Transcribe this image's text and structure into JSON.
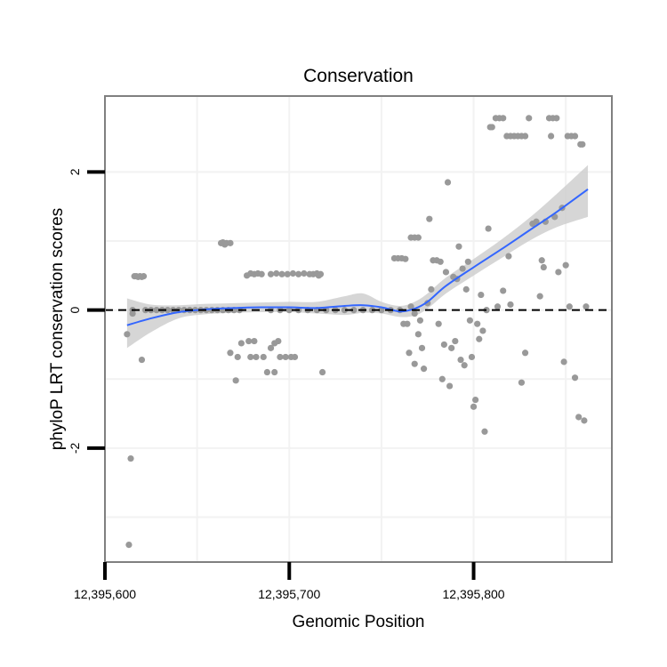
{
  "chart_data": {
    "type": "scatter",
    "title": "Conservation",
    "xlabel": "Genomic Position",
    "ylabel": "phyloP LRT conservation scores",
    "xlim": [
      12395600,
      12395875
    ],
    "ylim": [
      -3.65,
      3.1
    ],
    "x_ticks": [
      12395600,
      12395700,
      12395800
    ],
    "x_tick_labels": [
      "12,395,600",
      "12,395,700",
      "12,395,800"
    ],
    "y_ticks": [
      -2,
      0,
      2
    ],
    "y_tick_labels": [
      "-2",
      "0",
      "2"
    ],
    "x_minor_grid": [
      12395650,
      12395750,
      12395850
    ],
    "y_minor_grid": [
      -3,
      -1,
      1
    ],
    "grid": true,
    "reference_line": 0,
    "colors": {
      "points": "#999999",
      "smooth_line": "#3366FF",
      "confidence_band": "#cccccc",
      "panel_border": "#808080",
      "grid": "#f2f2f2"
    },
    "series": [
      {
        "values": [
          [
            12395612,
            -0.35
          ],
          [
            12395613,
            -3.4
          ],
          [
            12395614,
            -2.15
          ],
          [
            12395615,
            0.0
          ],
          [
            12395616,
            0.49
          ],
          [
            12395617,
            0.49
          ],
          [
            12395618,
            0.48
          ],
          [
            12395619,
            0.49
          ],
          [
            12395620,
            0.48
          ],
          [
            12395621,
            0.49
          ],
          [
            12395620,
            -0.72
          ],
          [
            12395615,
            -0.05
          ],
          [
            12395622,
            0.0
          ],
          [
            12395625,
            0.0
          ],
          [
            12395628,
            0.0
          ],
          [
            12395631,
            0.0
          ],
          [
            12395634,
            0.0
          ],
          [
            12395637,
            0.0
          ],
          [
            12395640,
            0.0
          ],
          [
            12395643,
            0.0
          ],
          [
            12395646,
            0.0
          ],
          [
            12395649,
            0.0
          ],
          [
            12395652,
            0.0
          ],
          [
            12395655,
            0.0
          ],
          [
            12395658,
            0.0
          ],
          [
            12395661,
            0.0
          ],
          [
            12395664,
            0.0
          ],
          [
            12395663,
            0.97
          ],
          [
            12395664,
            0.98
          ],
          [
            12395665,
            0.95
          ],
          [
            12395666,
            0.97
          ],
          [
            12395668,
            0.97
          ],
          [
            12395667,
            0.0
          ],
          [
            12395670,
            0.0
          ],
          [
            12395673,
            0.0
          ],
          [
            12395668,
            -0.62
          ],
          [
            12395672,
            -0.68
          ],
          [
            12395671,
            -1.02
          ],
          [
            12395674,
            -0.48
          ],
          [
            12395677,
            0.5
          ],
          [
            12395679,
            0.53
          ],
          [
            12395681,
            0.52
          ],
          [
            12395683,
            0.53
          ],
          [
            12395685,
            0.52
          ],
          [
            12395678,
            -0.45
          ],
          [
            12395681,
            -0.45
          ],
          [
            12395679,
            -0.68
          ],
          [
            12395682,
            -0.68
          ],
          [
            12395686,
            -0.68
          ],
          [
            12395688,
            -0.9
          ],
          [
            12395692,
            -0.9
          ],
          [
            12395690,
            -0.55
          ],
          [
            12395692,
            -0.48
          ],
          [
            12395694,
            -0.45
          ],
          [
            12395695,
            -0.68
          ],
          [
            12395698,
            -0.68
          ],
          [
            12395701,
            -0.68
          ],
          [
            12395703,
            -0.68
          ],
          [
            12395690,
            0.52
          ],
          [
            12395693,
            0.53
          ],
          [
            12395696,
            0.52
          ],
          [
            12395699,
            0.52
          ],
          [
            12395702,
            0.53
          ],
          [
            12395705,
            0.52
          ],
          [
            12395708,
            0.53
          ],
          [
            12395711,
            0.52
          ],
          [
            12395713,
            0.52
          ],
          [
            12395715,
            0.53
          ],
          [
            12395716,
            0.5
          ],
          [
            12395717,
            0.52
          ],
          [
            12395718,
            -0.9
          ],
          [
            12395690,
            0.0
          ],
          [
            12395695,
            0.0
          ],
          [
            12395700,
            0.0
          ],
          [
            12395705,
            0.0
          ],
          [
            12395710,
            0.0
          ],
          [
            12395715,
            0.0
          ],
          [
            12395720,
            0.0
          ],
          [
            12395725,
            0.0
          ],
          [
            12395730,
            0.0
          ],
          [
            12395735,
            0.0
          ],
          [
            12395740,
            0.0
          ],
          [
            12395745,
            0.0
          ],
          [
            12395750,
            0.0
          ],
          [
            12395755,
            0.0
          ],
          [
            12395760,
            0.0
          ],
          [
            12395757,
            0.75
          ],
          [
            12395759,
            0.75
          ],
          [
            12395761,
            0.75
          ],
          [
            12395763,
            0.74
          ],
          [
            12395762,
            -0.2
          ],
          [
            12395764,
            -0.2
          ],
          [
            12395765,
            -0.62
          ],
          [
            12395766,
            1.05
          ],
          [
            12395768,
            1.05
          ],
          [
            12395770,
            1.05
          ],
          [
            12395766,
            0.05
          ],
          [
            12395768,
            -0.05
          ],
          [
            12395768,
            -0.78
          ],
          [
            12395770,
            -0.35
          ],
          [
            12395771,
            -0.15
          ],
          [
            12395772,
            -0.55
          ],
          [
            12395773,
            -0.85
          ],
          [
            12395775,
            0.1
          ],
          [
            12395776,
            1.32
          ],
          [
            12395777,
            0.3
          ],
          [
            12395778,
            0.72
          ],
          [
            12395780,
            0.72
          ],
          [
            12395781,
            -0.2
          ],
          [
            12395782,
            0.7
          ],
          [
            12395783,
            -1.0
          ],
          [
            12395784,
            -0.5
          ],
          [
            12395785,
            0.55
          ],
          [
            12395786,
            1.85
          ],
          [
            12395787,
            -1.1
          ],
          [
            12395788,
            -0.55
          ],
          [
            12395789,
            0.48
          ],
          [
            12395790,
            -0.45
          ],
          [
            12395791,
            0.45
          ],
          [
            12395792,
            0.92
          ],
          [
            12395793,
            -0.72
          ],
          [
            12395794,
            0.6
          ],
          [
            12395795,
            -0.8
          ],
          [
            12395796,
            0.3
          ],
          [
            12395797,
            0.7
          ],
          [
            12395798,
            -0.15
          ],
          [
            12395799,
            -0.68
          ],
          [
            12395800,
            -1.4
          ],
          [
            12395801,
            -1.3
          ],
          [
            12395802,
            -0.2
          ],
          [
            12395803,
            -0.42
          ],
          [
            12395804,
            0.22
          ],
          [
            12395805,
            -0.3
          ],
          [
            12395806,
            -1.76
          ],
          [
            12395807,
            0.0
          ],
          [
            12395808,
            1.18
          ],
          [
            12395809,
            2.65
          ],
          [
            12395810,
            2.65
          ],
          [
            12395812,
            2.78
          ],
          [
            12395814,
            2.78
          ],
          [
            12395816,
            2.78
          ],
          [
            12395813,
            0.05
          ],
          [
            12395816,
            0.28
          ],
          [
            12395819,
            0.78
          ],
          [
            12395818,
            2.52
          ],
          [
            12395820,
            2.52
          ],
          [
            12395822,
            2.52
          ],
          [
            12395824,
            2.52
          ],
          [
            12395826,
            2.52
          ],
          [
            12395828,
            2.52
          ],
          [
            12395820,
            0.08
          ],
          [
            12395826,
            -1.05
          ],
          [
            12395828,
            -0.62
          ],
          [
            12395830,
            2.78
          ],
          [
            12395832,
            1.25
          ],
          [
            12395834,
            1.28
          ],
          [
            12395836,
            0.2
          ],
          [
            12395837,
            0.72
          ],
          [
            12395838,
            0.62
          ],
          [
            12395839,
            1.28
          ],
          [
            12395841,
            2.78
          ],
          [
            12395843,
            2.78
          ],
          [
            12395845,
            2.78
          ],
          [
            12395842,
            2.52
          ],
          [
            12395844,
            1.35
          ],
          [
            12395846,
            0.55
          ],
          [
            12395848,
            1.48
          ],
          [
            12395849,
            -0.75
          ],
          [
            12395850,
            0.65
          ],
          [
            12395851,
            2.52
          ],
          [
            12395853,
            2.52
          ],
          [
            12395855,
            2.52
          ],
          [
            12395852,
            0.05
          ],
          [
            12395855,
            -0.98
          ],
          [
            12395857,
            -1.55
          ],
          [
            12395858,
            2.4
          ],
          [
            12395859,
            2.4
          ],
          [
            12395860,
            -1.6
          ],
          [
            12395861,
            0.05
          ]
        ]
      }
    ],
    "smooth": {
      "x": [
        12395612,
        12395625,
        12395640,
        12395655,
        12395670,
        12395685,
        12395700,
        12395715,
        12395730,
        12395740,
        12395750,
        12395760,
        12395768,
        12395775,
        12395785,
        12395800,
        12395815,
        12395830,
        12395845,
        12395862
      ],
      "y": [
        -0.22,
        -0.12,
        -0.03,
        0.01,
        0.03,
        0.04,
        0.04,
        0.03,
        0.06,
        0.07,
        0.04,
        -0.02,
        0.02,
        0.12,
        0.35,
        0.62,
        0.88,
        1.15,
        1.42,
        1.75
      ],
      "lower": [
        -0.55,
        -0.32,
        -0.12,
        -0.06,
        -0.04,
        -0.03,
        -0.03,
        -0.05,
        -0.07,
        -0.04,
        -0.05,
        -0.1,
        -0.08,
        0.02,
        0.24,
        0.5,
        0.75,
        1.0,
        1.2,
        1.35
      ],
      "upper": [
        0.17,
        0.08,
        0.07,
        0.09,
        0.1,
        0.11,
        0.12,
        0.12,
        0.2,
        0.24,
        0.12,
        0.06,
        0.12,
        0.24,
        0.47,
        0.74,
        1.02,
        1.33,
        1.68,
        2.1
      ]
    }
  }
}
